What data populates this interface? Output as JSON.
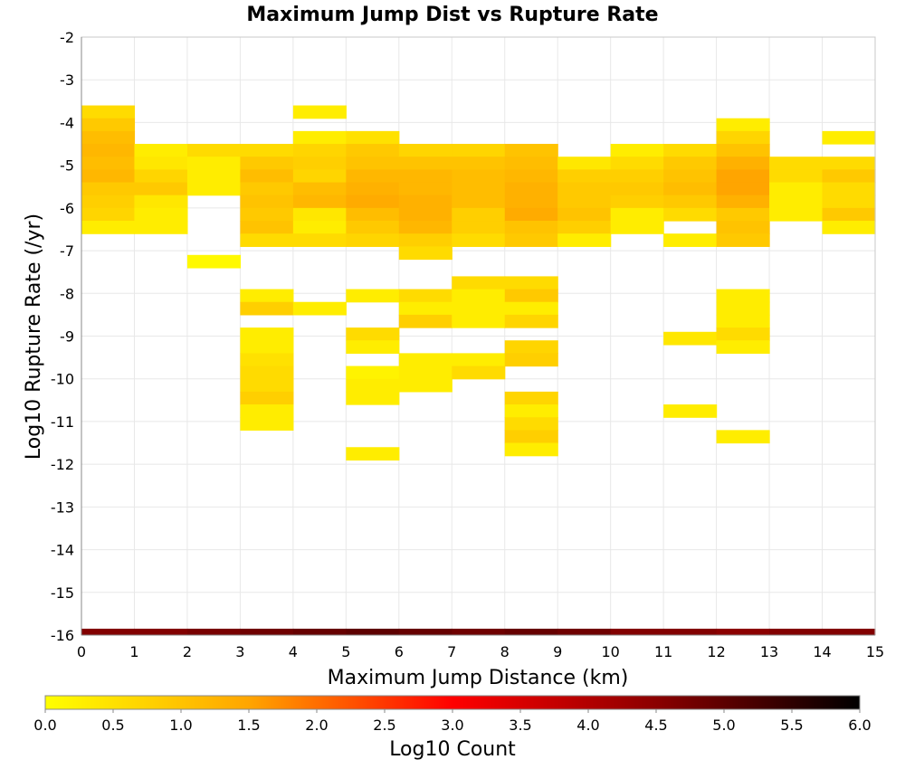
{
  "chart_data": {
    "type": "heatmap",
    "title": "Maximum Jump Dist vs Rupture Rate",
    "xlabel": "Maximum Jump Distance (km)",
    "ylabel": "Log10 Rupture Rate (/yr)",
    "xlim": [
      0,
      15
    ],
    "ylim": [
      -16,
      -2
    ],
    "x_bin_width": 1,
    "y_bin_width": 0.3,
    "grid": true,
    "x_ticks": [
      "0",
      "1",
      "2",
      "3",
      "4",
      "5",
      "6",
      "7",
      "8",
      "9",
      "10",
      "11",
      "12",
      "13",
      "14",
      "15"
    ],
    "y_ticks": [
      "-2",
      "-3",
      "-4",
      "-5",
      "-6",
      "-7",
      "-8",
      "-9",
      "-10",
      "-11",
      "-12",
      "-13",
      "-14",
      "-15",
      "-16"
    ],
    "colorbar": {
      "label": "Log10 Count",
      "range": [
        0,
        6
      ],
      "ticks": [
        "0.0",
        "0.5",
        "1.0",
        "1.5",
        "2.0",
        "2.5",
        "3.0",
        "3.5",
        "4.0",
        "4.5",
        "5.0",
        "5.5",
        "6.0"
      ],
      "position": "bottom",
      "colors": [
        "#ffff00",
        "#ffa500",
        "#ff0000",
        "#8b0000",
        "#000000"
      ]
    },
    "cells": [
      {
        "x": 0,
        "y": -3.75,
        "v": 0.6
      },
      {
        "x": 0,
        "y": -4.05,
        "v": 0.9
      },
      {
        "x": 0,
        "y": -4.35,
        "v": 1.1
      },
      {
        "x": 0,
        "y": -4.65,
        "v": 1.2
      },
      {
        "x": 0,
        "y": -4.95,
        "v": 1.1
      },
      {
        "x": 0,
        "y": -5.25,
        "v": 1.2
      },
      {
        "x": 0,
        "y": -5.55,
        "v": 0.9
      },
      {
        "x": 0,
        "y": -5.85,
        "v": 0.8
      },
      {
        "x": 0,
        "y": -6.15,
        "v": 0.7
      },
      {
        "x": 0,
        "y": -6.45,
        "v": 0.3
      },
      {
        "x": 1,
        "y": -4.65,
        "v": 0.3
      },
      {
        "x": 1,
        "y": -4.95,
        "v": 0.4
      },
      {
        "x": 1,
        "y": -5.25,
        "v": 0.7
      },
      {
        "x": 1,
        "y": -5.55,
        "v": 0.9
      },
      {
        "x": 1,
        "y": -5.85,
        "v": 0.4
      },
      {
        "x": 1,
        "y": -6.15,
        "v": 0.3
      },
      {
        "x": 1,
        "y": -6.45,
        "v": 0.3
      },
      {
        "x": 2,
        "y": -4.65,
        "v": 0.6
      },
      {
        "x": 2,
        "y": -4.95,
        "v": 0.3
      },
      {
        "x": 2,
        "y": -5.25,
        "v": 0.3
      },
      {
        "x": 2,
        "y": -5.55,
        "v": 0.3
      },
      {
        "x": 2,
        "y": -7.25,
        "v": 0.1
      },
      {
        "x": 3,
        "y": -4.65,
        "v": 0.6
      },
      {
        "x": 3,
        "y": -4.95,
        "v": 0.9
      },
      {
        "x": 3,
        "y": -5.25,
        "v": 1.1
      },
      {
        "x": 3,
        "y": -5.55,
        "v": 0.9
      },
      {
        "x": 3,
        "y": -5.85,
        "v": 1.0
      },
      {
        "x": 3,
        "y": -6.15,
        "v": 0.9
      },
      {
        "x": 3,
        "y": -6.45,
        "v": 1.0
      },
      {
        "x": 3,
        "y": -6.75,
        "v": 0.6
      },
      {
        "x": 3,
        "y": -8.05,
        "v": 0.3
      },
      {
        "x": 3,
        "y": -8.35,
        "v": 0.8
      },
      {
        "x": 3,
        "y": -8.95,
        "v": 0.3
      },
      {
        "x": 3,
        "y": -9.25,
        "v": 0.3
      },
      {
        "x": 3,
        "y": -9.55,
        "v": 0.5
      },
      {
        "x": 3,
        "y": -9.85,
        "v": 0.6
      },
      {
        "x": 3,
        "y": -10.15,
        "v": 0.6
      },
      {
        "x": 3,
        "y": -10.45,
        "v": 0.8
      },
      {
        "x": 3,
        "y": -10.75,
        "v": 0.3
      },
      {
        "x": 3,
        "y": -11.05,
        "v": 0.3
      },
      {
        "x": 4,
        "y": -3.75,
        "v": 0.3
      },
      {
        "x": 4,
        "y": -4.35,
        "v": 0.3
      },
      {
        "x": 4,
        "y": -4.65,
        "v": 0.7
      },
      {
        "x": 4,
        "y": -4.95,
        "v": 0.8
      },
      {
        "x": 4,
        "y": -5.25,
        "v": 0.7
      },
      {
        "x": 4,
        "y": -5.55,
        "v": 1.1
      },
      {
        "x": 4,
        "y": -5.85,
        "v": 1.2
      },
      {
        "x": 4,
        "y": -6.15,
        "v": 0.4
      },
      {
        "x": 4,
        "y": -6.45,
        "v": 0.3
      },
      {
        "x": 4,
        "y": -6.75,
        "v": 0.6
      },
      {
        "x": 4,
        "y": -8.35,
        "v": 0.3
      },
      {
        "x": 5,
        "y": -4.35,
        "v": 0.5
      },
      {
        "x": 5,
        "y": -4.65,
        "v": 0.9
      },
      {
        "x": 5,
        "y": -4.95,
        "v": 1.0
      },
      {
        "x": 5,
        "y": -5.25,
        "v": 1.2
      },
      {
        "x": 5,
        "y": -5.55,
        "v": 1.3
      },
      {
        "x": 5,
        "y": -5.85,
        "v": 1.4
      },
      {
        "x": 5,
        "y": -6.15,
        "v": 1.1
      },
      {
        "x": 5,
        "y": -6.45,
        "v": 0.9
      },
      {
        "x": 5,
        "y": -6.75,
        "v": 0.7
      },
      {
        "x": 5,
        "y": -8.05,
        "v": 0.3
      },
      {
        "x": 5,
        "y": -8.95,
        "v": 0.6
      },
      {
        "x": 5,
        "y": -9.25,
        "v": 0.3
      },
      {
        "x": 5,
        "y": -9.85,
        "v": 0.2
      },
      {
        "x": 5,
        "y": -10.15,
        "v": 0.3
      },
      {
        "x": 5,
        "y": -10.45,
        "v": 0.3
      },
      {
        "x": 5,
        "y": -11.75,
        "v": 0.3
      },
      {
        "x": 6,
        "y": -4.65,
        "v": 0.7
      },
      {
        "x": 6,
        "y": -4.95,
        "v": 1.0
      },
      {
        "x": 6,
        "y": -5.25,
        "v": 1.2
      },
      {
        "x": 6,
        "y": -5.55,
        "v": 1.2
      },
      {
        "x": 6,
        "y": -5.85,
        "v": 1.3
      },
      {
        "x": 6,
        "y": -6.15,
        "v": 1.3
      },
      {
        "x": 6,
        "y": -6.45,
        "v": 1.2
      },
      {
        "x": 6,
        "y": -6.75,
        "v": 0.8
      },
      {
        "x": 6,
        "y": -7.05,
        "v": 0.6
      },
      {
        "x": 6,
        "y": -8.05,
        "v": 0.6
      },
      {
        "x": 6,
        "y": -8.35,
        "v": 0.3
      },
      {
        "x": 6,
        "y": -8.65,
        "v": 0.8
      },
      {
        "x": 6,
        "y": -9.55,
        "v": 0.3
      },
      {
        "x": 6,
        "y": -9.85,
        "v": 0.3
      },
      {
        "x": 6,
        "y": -10.15,
        "v": 0.3
      },
      {
        "x": 7,
        "y": -4.65,
        "v": 0.7
      },
      {
        "x": 7,
        "y": -4.95,
        "v": 1.0
      },
      {
        "x": 7,
        "y": -5.25,
        "v": 1.1
      },
      {
        "x": 7,
        "y": -5.55,
        "v": 1.1
      },
      {
        "x": 7,
        "y": -5.85,
        "v": 1.1
      },
      {
        "x": 7,
        "y": -6.15,
        "v": 0.8
      },
      {
        "x": 7,
        "y": -6.45,
        "v": 0.8
      },
      {
        "x": 7,
        "y": -6.75,
        "v": 0.6
      },
      {
        "x": 7,
        "y": -7.75,
        "v": 0.6
      },
      {
        "x": 7,
        "y": -8.05,
        "v": 0.3
      },
      {
        "x": 7,
        "y": -8.35,
        "v": 0.3
      },
      {
        "x": 7,
        "y": -8.65,
        "v": 0.3
      },
      {
        "x": 7,
        "y": -9.55,
        "v": 0.3
      },
      {
        "x": 7,
        "y": -9.85,
        "v": 0.6
      },
      {
        "x": 8,
        "y": -4.65,
        "v": 1.0
      },
      {
        "x": 8,
        "y": -4.95,
        "v": 1.1
      },
      {
        "x": 8,
        "y": -5.25,
        "v": 1.2
      },
      {
        "x": 8,
        "y": -5.55,
        "v": 1.3
      },
      {
        "x": 8,
        "y": -5.85,
        "v": 1.3
      },
      {
        "x": 8,
        "y": -6.15,
        "v": 1.4
      },
      {
        "x": 8,
        "y": -6.45,
        "v": 1.0
      },
      {
        "x": 8,
        "y": -6.75,
        "v": 0.9
      },
      {
        "x": 8,
        "y": -7.75,
        "v": 0.6
      },
      {
        "x": 8,
        "y": -8.05,
        "v": 0.9
      },
      {
        "x": 8,
        "y": -8.35,
        "v": 0.3
      },
      {
        "x": 8,
        "y": -8.65,
        "v": 0.7
      },
      {
        "x": 8,
        "y": -9.25,
        "v": 0.7
      },
      {
        "x": 8,
        "y": -9.55,
        "v": 0.8
      },
      {
        "x": 8,
        "y": -10.45,
        "v": 0.7
      },
      {
        "x": 8,
        "y": -10.75,
        "v": 0.3
      },
      {
        "x": 8,
        "y": -11.05,
        "v": 0.6
      },
      {
        "x": 8,
        "y": -11.35,
        "v": 0.8
      },
      {
        "x": 8,
        "y": -11.65,
        "v": 0.3
      },
      {
        "x": 9,
        "y": -4.95,
        "v": 0.4
      },
      {
        "x": 9,
        "y": -5.25,
        "v": 0.8
      },
      {
        "x": 9,
        "y": -5.55,
        "v": 0.9
      },
      {
        "x": 9,
        "y": -5.85,
        "v": 0.9
      },
      {
        "x": 9,
        "y": -6.15,
        "v": 1.0
      },
      {
        "x": 9,
        "y": -6.45,
        "v": 0.8
      },
      {
        "x": 9,
        "y": -6.75,
        "v": 0.3
      },
      {
        "x": 10,
        "y": -4.65,
        "v": 0.3
      },
      {
        "x": 10,
        "y": -4.95,
        "v": 0.6
      },
      {
        "x": 10,
        "y": -5.25,
        "v": 0.8
      },
      {
        "x": 10,
        "y": -5.55,
        "v": 0.9
      },
      {
        "x": 10,
        "y": -5.85,
        "v": 0.8
      },
      {
        "x": 10,
        "y": -6.15,
        "v": 0.3
      },
      {
        "x": 10,
        "y": -6.45,
        "v": 0.3
      },
      {
        "x": 11,
        "y": -4.65,
        "v": 0.6
      },
      {
        "x": 11,
        "y": -4.95,
        "v": 0.9
      },
      {
        "x": 11,
        "y": -5.25,
        "v": 1.0
      },
      {
        "x": 11,
        "y": -5.55,
        "v": 1.1
      },
      {
        "x": 11,
        "y": -5.85,
        "v": 0.9
      },
      {
        "x": 11,
        "y": -6.15,
        "v": 0.6
      },
      {
        "x": 11,
        "y": -6.75,
        "v": 0.3
      },
      {
        "x": 11,
        "y": -9.05,
        "v": 0.4
      },
      {
        "x": 11,
        "y": -10.75,
        "v": 0.3
      },
      {
        "x": 12,
        "y": -4.05,
        "v": 0.3
      },
      {
        "x": 12,
        "y": -4.35,
        "v": 0.7
      },
      {
        "x": 12,
        "y": -4.65,
        "v": 1.0
      },
      {
        "x": 12,
        "y": -4.95,
        "v": 1.3
      },
      {
        "x": 12,
        "y": -5.25,
        "v": 1.5
      },
      {
        "x": 12,
        "y": -5.55,
        "v": 1.5
      },
      {
        "x": 12,
        "y": -5.85,
        "v": 1.3
      },
      {
        "x": 12,
        "y": -6.15,
        "v": 0.9
      },
      {
        "x": 12,
        "y": -6.45,
        "v": 1.0
      },
      {
        "x": 12,
        "y": -6.75,
        "v": 0.9
      },
      {
        "x": 12,
        "y": -8.05,
        "v": 0.3
      },
      {
        "x": 12,
        "y": -8.35,
        "v": 0.3
      },
      {
        "x": 12,
        "y": -8.65,
        "v": 0.3
      },
      {
        "x": 12,
        "y": -8.95,
        "v": 0.6
      },
      {
        "x": 12,
        "y": -9.25,
        "v": 0.3
      },
      {
        "x": 12,
        "y": -11.35,
        "v": 0.3
      },
      {
        "x": 13,
        "y": -4.95,
        "v": 0.6
      },
      {
        "x": 13,
        "y": -5.25,
        "v": 0.6
      },
      {
        "x": 13,
        "y": -5.55,
        "v": 0.3
      },
      {
        "x": 13,
        "y": -5.85,
        "v": 0.3
      },
      {
        "x": 13,
        "y": -6.15,
        "v": 0.3
      },
      {
        "x": 14,
        "y": -4.35,
        "v": 0.3
      },
      {
        "x": 14,
        "y": -4.95,
        "v": 0.6
      },
      {
        "x": 14,
        "y": -5.25,
        "v": 0.9
      },
      {
        "x": 14,
        "y": -5.55,
        "v": 0.6
      },
      {
        "x": 14,
        "y": -5.85,
        "v": 0.6
      },
      {
        "x": 14,
        "y": -6.15,
        "v": 0.9
      },
      {
        "x": 14,
        "y": -6.45,
        "v": 0.3
      }
    ],
    "floor_band": {
      "y_range": [
        -16,
        -15.85
      ],
      "values": [
        4.6,
        4.6,
        4.7,
        4.8,
        4.9,
        5.0,
        4.9,
        4.8,
        4.9,
        4.8,
        4.6,
        4.6,
        4.5,
        4.6,
        4.6
      ]
    }
  }
}
